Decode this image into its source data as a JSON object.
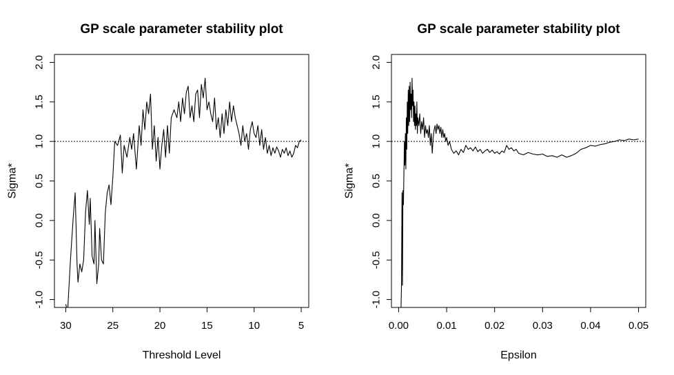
{
  "chart_data": [
    {
      "type": "line",
      "title": "GP scale parameter stability plot",
      "xlabel": "Threshold Level",
      "ylabel": "Sigma*",
      "xlim": [
        31.2,
        4.2
      ],
      "ylim": [
        -1.1,
        2.1
      ],
      "xticks": [
        30,
        25,
        20,
        15,
        10,
        5
      ],
      "yticks": [
        -1.0,
        -0.5,
        0.0,
        0.5,
        1.0,
        1.5,
        2.0
      ],
      "reference_line": {
        "y": 1.0,
        "style": "dotted"
      },
      "series": [
        {
          "x": [
            30.0,
            29.8,
            29.5,
            29.2,
            29.0,
            28.8,
            28.7,
            28.5,
            28.3,
            28.1,
            27.9,
            27.7,
            27.5,
            27.4,
            27.2,
            27.0,
            26.9,
            26.7,
            26.5,
            26.4,
            26.2,
            26.0,
            25.8,
            25.6,
            25.4,
            25.2,
            25.0,
            24.8,
            24.5,
            24.2,
            24.0,
            23.8,
            23.5,
            23.2,
            23.0,
            22.8,
            22.5,
            22.2,
            22.0,
            21.8,
            21.6,
            21.4,
            21.2,
            21.0,
            20.8,
            20.6,
            20.4,
            20.2,
            20.0,
            19.8,
            19.6,
            19.4,
            19.2,
            19.0,
            18.8,
            18.5,
            18.2,
            18.0,
            17.8,
            17.6,
            17.4,
            17.2,
            17.0,
            16.8,
            16.6,
            16.4,
            16.2,
            16.0,
            15.8,
            15.6,
            15.4,
            15.2,
            15.0,
            14.8,
            14.6,
            14.4,
            14.2,
            14.0,
            13.8,
            13.6,
            13.4,
            13.2,
            13.0,
            12.8,
            12.6,
            12.4,
            12.2,
            12.0,
            11.8,
            11.6,
            11.4,
            11.2,
            11.0,
            10.8,
            10.6,
            10.4,
            10.2,
            10.0,
            9.8,
            9.6,
            9.4,
            9.2,
            9.0,
            8.8,
            8.6,
            8.4,
            8.2,
            8.0,
            7.8,
            7.6,
            7.4,
            7.2,
            7.0,
            6.8,
            6.6,
            6.4,
            6.2,
            6.0,
            5.8,
            5.6,
            5.4,
            5.2,
            5.0
          ],
          "y": [
            -1.06,
            -1.15,
            -0.5,
            0.05,
            0.35,
            -0.55,
            -0.78,
            -0.55,
            -0.65,
            -0.5,
            0.1,
            0.38,
            -0.05,
            0.28,
            -0.45,
            -0.55,
            0.0,
            -0.8,
            -0.55,
            -0.1,
            -0.5,
            -0.55,
            0.1,
            0.35,
            0.45,
            0.2,
            0.55,
            1.0,
            0.95,
            1.08,
            0.6,
            0.95,
            0.8,
            1.05,
            0.9,
            1.1,
            0.65,
            1.2,
            0.95,
            1.4,
            1.15,
            1.5,
            1.35,
            1.6,
            0.9,
            1.2,
            0.75,
            1.05,
            0.65,
            0.95,
            1.15,
            0.8,
            1.2,
            0.85,
            1.3,
            1.4,
            1.3,
            1.5,
            1.25,
            1.55,
            1.35,
            1.62,
            1.7,
            1.3,
            1.45,
            1.25,
            1.6,
            1.65,
            1.3,
            1.72,
            1.55,
            1.8,
            1.4,
            1.5,
            1.35,
            1.25,
            1.55,
            1.15,
            1.3,
            1.05,
            1.35,
            1.1,
            1.4,
            1.2,
            1.5,
            1.25,
            1.45,
            1.3,
            1.2,
            1.1,
            0.95,
            1.2,
            1.0,
            1.1,
            0.9,
            1.15,
            1.25,
            1.1,
            1.05,
            1.2,
            0.95,
            1.15,
            0.9,
            1.05,
            0.85,
            0.95,
            0.82,
            0.92,
            0.85,
            0.93,
            0.88,
            0.8,
            0.9,
            0.85,
            0.92,
            0.82,
            0.88,
            0.8,
            0.85,
            0.95,
            0.92,
            1.0,
            1.02
          ]
        }
      ]
    },
    {
      "type": "line",
      "title": "GP scale parameter stability plot",
      "xlabel": "Epsilon",
      "ylabel": "Sigma*",
      "xlim": [
        -0.0015,
        0.0515
      ],
      "ylim": [
        -1.1,
        2.1
      ],
      "xticks": [
        0.0,
        0.01,
        0.02,
        0.03,
        0.04,
        0.05
      ],
      "xtick_labels": [
        "0.00",
        "0.01",
        "0.02",
        "0.03",
        "0.04",
        "0.05"
      ],
      "yticks": [
        -1.0,
        -0.5,
        0.0,
        0.5,
        1.0,
        1.5,
        2.0
      ],
      "reference_line": {
        "y": 1.0,
        "style": "dotted"
      },
      "series": [
        {
          "x": [
            0.0005,
            0.0006,
            0.0007,
            0.0008,
            0.0009,
            0.001,
            0.0011,
            0.0012,
            0.0013,
            0.0014,
            0.0015,
            0.0016,
            0.0017,
            0.0018,
            0.0019,
            0.002,
            0.0021,
            0.0022,
            0.0023,
            0.0024,
            0.0025,
            0.0026,
            0.0027,
            0.0028,
            0.0029,
            0.003,
            0.0031,
            0.0032,
            0.0033,
            0.0034,
            0.0035,
            0.0036,
            0.0037,
            0.0038,
            0.0039,
            0.004,
            0.0042,
            0.0044,
            0.0046,
            0.0048,
            0.005,
            0.0052,
            0.0054,
            0.0056,
            0.0058,
            0.006,
            0.0062,
            0.0064,
            0.0066,
            0.0068,
            0.007,
            0.0072,
            0.0074,
            0.0076,
            0.0078,
            0.008,
            0.0082,
            0.0084,
            0.0086,
            0.0088,
            0.009,
            0.0092,
            0.0094,
            0.0096,
            0.0098,
            0.01,
            0.0103,
            0.0106,
            0.011,
            0.0115,
            0.012,
            0.0125,
            0.013,
            0.0135,
            0.014,
            0.0145,
            0.015,
            0.0155,
            0.016,
            0.0165,
            0.017,
            0.0175,
            0.018,
            0.0185,
            0.019,
            0.0195,
            0.02,
            0.0205,
            0.021,
            0.0215,
            0.022,
            0.0225,
            0.023,
            0.0235,
            0.024,
            0.0245,
            0.025,
            0.026,
            0.027,
            0.028,
            0.029,
            0.03,
            0.031,
            0.032,
            0.033,
            0.034,
            0.035,
            0.036,
            0.037,
            0.038,
            0.039,
            0.04,
            0.041,
            0.042,
            0.043,
            0.044,
            0.045,
            0.046,
            0.047,
            0.048,
            0.049,
            0.05
          ],
          "y": [
            -1.1,
            -0.8,
            0.35,
            -0.82,
            0.38,
            0.2,
            0.6,
            1.0,
            0.7,
            1.1,
            0.65,
            1.3,
            0.9,
            1.5,
            1.1,
            1.65,
            1.2,
            1.7,
            1.25,
            1.75,
            1.4,
            1.6,
            1.3,
            1.8,
            1.45,
            1.65,
            1.25,
            1.5,
            1.2,
            1.45,
            1.15,
            1.35,
            1.2,
            1.5,
            1.1,
            1.3,
            1.2,
            1.35,
            1.1,
            1.25,
            1.15,
            1.3,
            1.05,
            1.2,
            1.1,
            1.15,
            1.05,
            1.2,
            0.95,
            1.1,
            0.85,
            1.05,
            1.15,
            1.2,
            1.1,
            1.22,
            1.15,
            1.2,
            1.1,
            1.18,
            1.05,
            1.15,
            1.05,
            1.1,
            1.0,
            1.05,
            0.95,
            1.0,
            0.9,
            0.85,
            0.88,
            0.83,
            0.9,
            0.86,
            0.95,
            0.9,
            0.92,
            0.88,
            0.93,
            0.87,
            0.9,
            0.85,
            0.88,
            0.9,
            0.86,
            0.89,
            0.85,
            0.87,
            0.84,
            0.88,
            0.86,
            0.95,
            0.9,
            0.92,
            0.88,
            0.9,
            0.85,
            0.83,
            0.86,
            0.84,
            0.83,
            0.84,
            0.81,
            0.82,
            0.8,
            0.83,
            0.8,
            0.82,
            0.85,
            0.9,
            0.92,
            0.95,
            0.94,
            0.96,
            0.97,
            0.99,
            1.0,
            1.02,
            1.01,
            1.03,
            1.02,
            1.03
          ]
        }
      ]
    }
  ]
}
